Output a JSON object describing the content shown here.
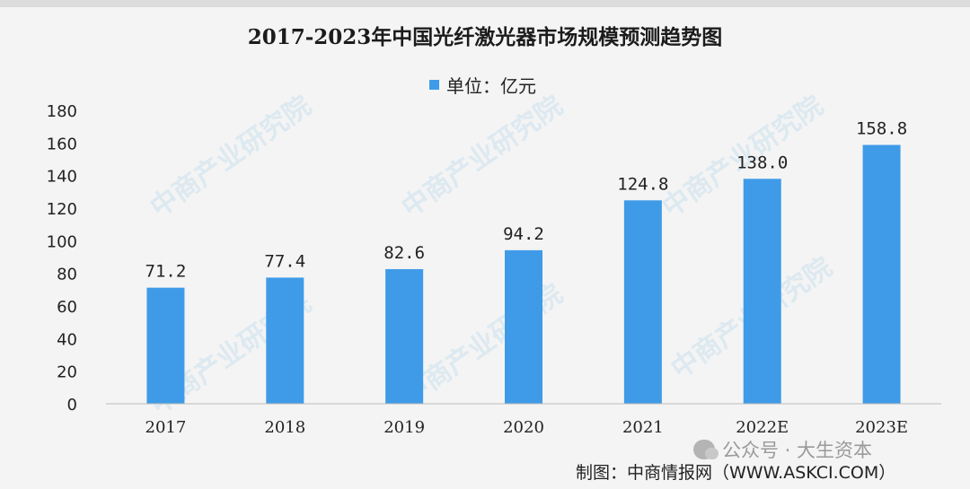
{
  "chart_data": {
    "type": "bar",
    "title": "2017-2023年中国光纤激光器市场规模预测趋势图",
    "legend": {
      "label": "单位：亿元",
      "color": "#3f9be8",
      "placement": "top-center"
    },
    "categories": [
      "2017",
      "2018",
      "2019",
      "2020",
      "2021",
      "2022E",
      "2023E"
    ],
    "values": [
      71.2,
      77.4,
      82.6,
      94.2,
      124.8,
      138.0,
      158.8
    ],
    "value_labels": [
      "71.2",
      "77.4",
      "82.6",
      "94.2",
      "124.8",
      "138.0",
      "158.8"
    ],
    "ylim": [
      0,
      180
    ],
    "yticks": [
      "0",
      "20",
      "40",
      "60",
      "80",
      "100",
      "120",
      "140",
      "160",
      "180"
    ],
    "grid": false,
    "bar_color": "#3f9be8"
  },
  "watermark": {
    "text": "中商产业研究院"
  },
  "footer": {
    "wechat": "公众号 · 大生资本",
    "source": "制图：中商情报网（WWW.ASKCI.COM）"
  }
}
